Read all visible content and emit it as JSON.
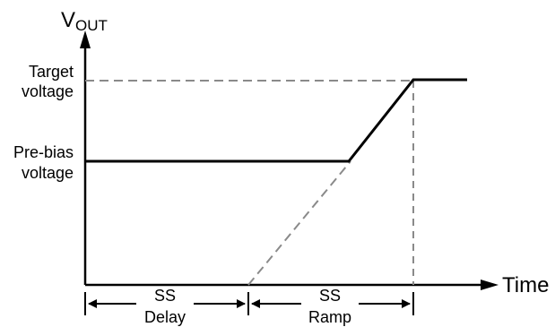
{
  "axes": {
    "y_label_main": "V",
    "y_label_sub": "OUT",
    "x_label": "Time"
  },
  "levels": {
    "target_line1": "Target",
    "target_line2": "voltage",
    "prebias_line1": "Pre-bias",
    "prebias_line2": "voltage"
  },
  "intervals": {
    "delay_line1": "SS",
    "delay_line2": "Delay",
    "ramp_line1": "SS",
    "ramp_line2": "Ramp"
  },
  "colors": {
    "axis": "#000000",
    "trace": "#000000",
    "guide": "#8a8a8a"
  }
}
